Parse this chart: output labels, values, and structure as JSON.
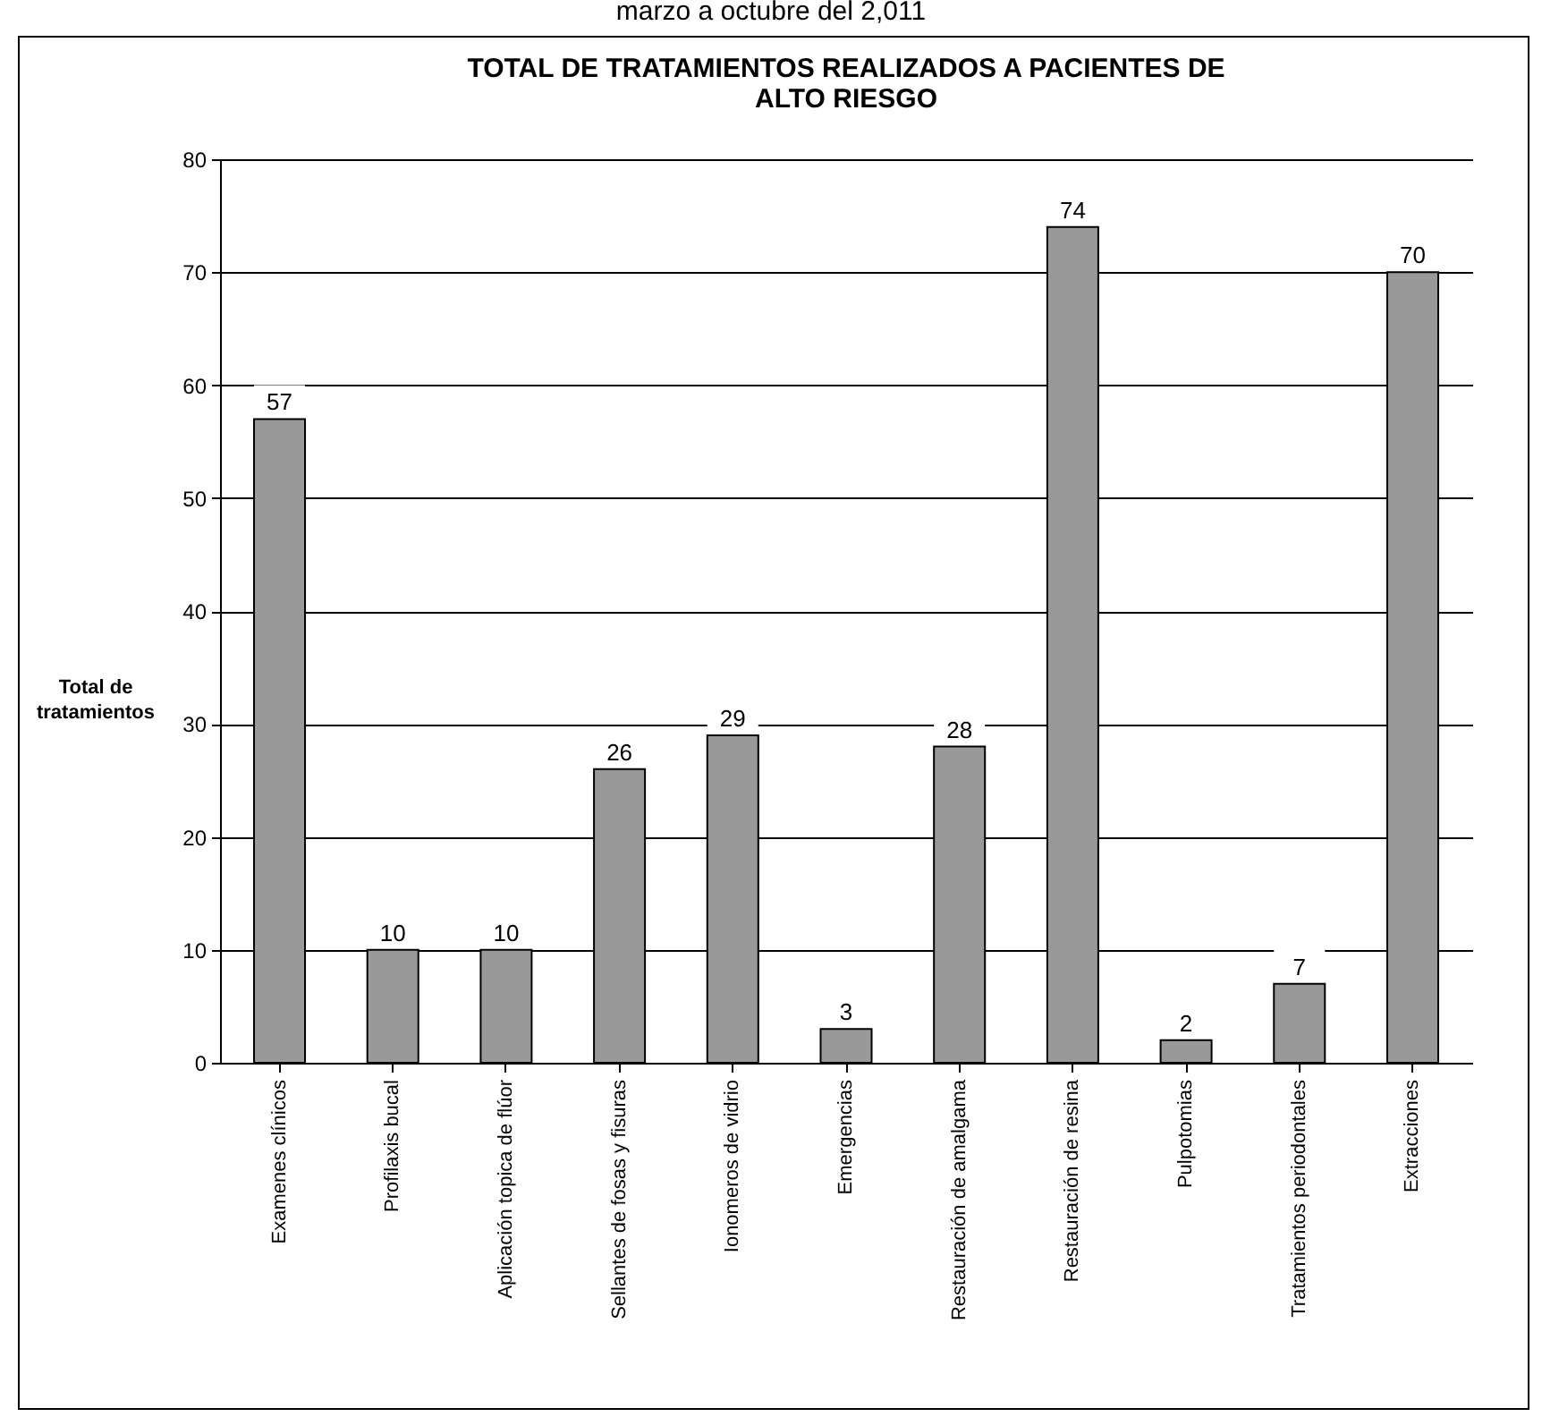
{
  "chart_data": {
    "type": "bar",
    "title": "TOTAL DE TRATAMIENTOS REALIZADOS A PACIENTES DE ALTO RIESGO",
    "annotations": [
      "marzo a octubre del 2,011"
    ],
    "ylabel": "Total de tratamientos",
    "categories": [
      "Examenes clínicos",
      "Profilaxis bucal",
      "Aplicación topica de flúor",
      "Sellantes de fosas y fisuras",
      "Ionomeros de vidrio",
      "Emergencias",
      "Restauración de amalgama",
      "Restauración de resina",
      "Pulpotomias",
      "Tratamientos periodontales",
      "Extracciones"
    ],
    "values": [
      57,
      10,
      10,
      26,
      29,
      3,
      28,
      74,
      2,
      7,
      70
    ],
    "color": "#999999",
    "ylim": [
      0,
      80
    ],
    "yticks": [
      0,
      10,
      20,
      30,
      40,
      50,
      60,
      70,
      80
    ],
    "grid": "y",
    "data_labels": true
  }
}
